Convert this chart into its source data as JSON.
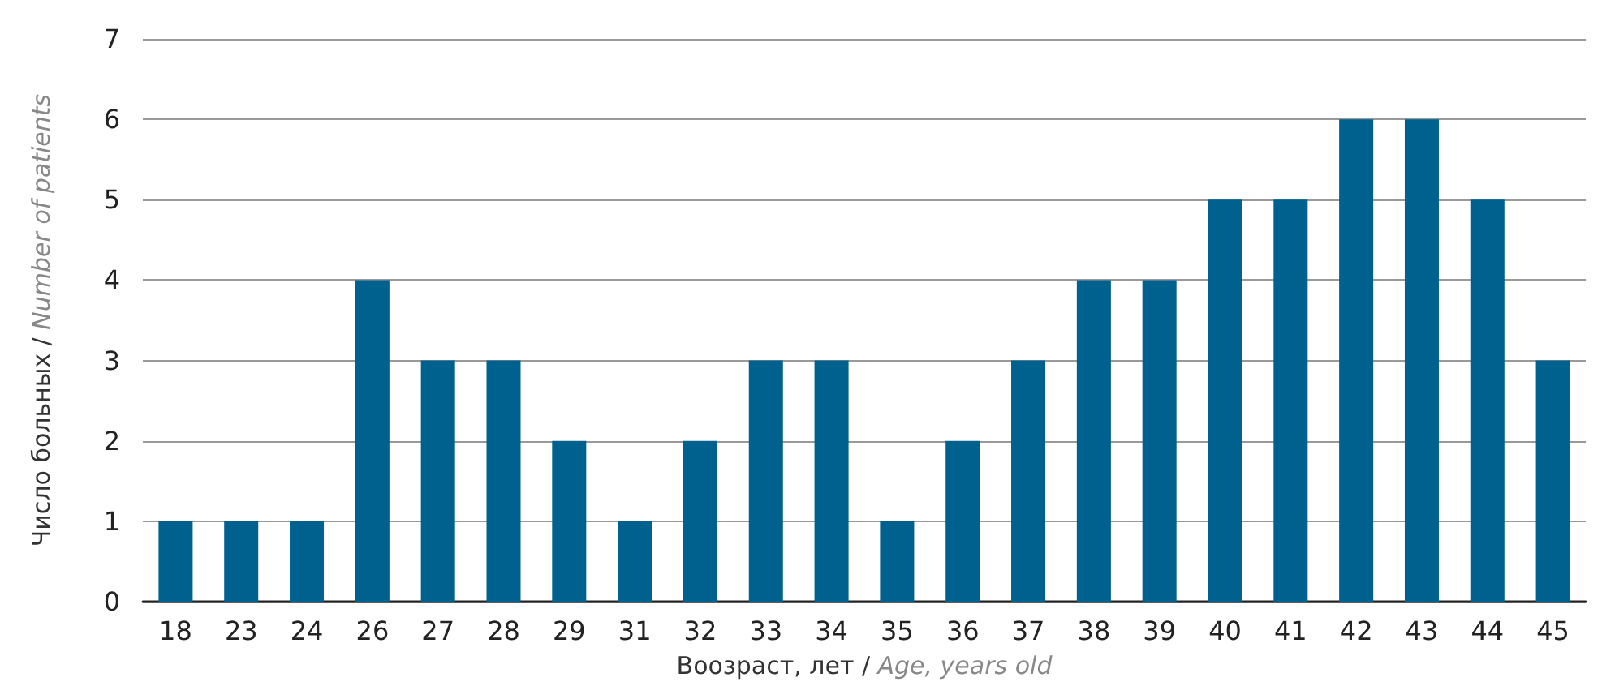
{
  "chart_data": {
    "type": "bar",
    "categories": [
      "18",
      "23",
      "24",
      "26",
      "27",
      "28",
      "29",
      "31",
      "32",
      "33",
      "34",
      "35",
      "36",
      "37",
      "38",
      "39",
      "40",
      "41",
      "42",
      "43",
      "44",
      "45"
    ],
    "values": [
      1,
      1,
      1,
      4,
      3,
      3,
      2,
      1,
      2,
      3,
      3,
      1,
      2,
      3,
      4,
      4,
      5,
      5,
      6,
      6,
      5,
      3
    ],
    "color": "#00618e",
    "xlabel": "Воозраст, лет / Age, years old",
    "ylabel": "Число больных / Number of patients",
    "ylim": [
      0,
      7
    ],
    "yticks": [
      0,
      1,
      2,
      3,
      4,
      5,
      6,
      7
    ],
    "grid": "y"
  }
}
